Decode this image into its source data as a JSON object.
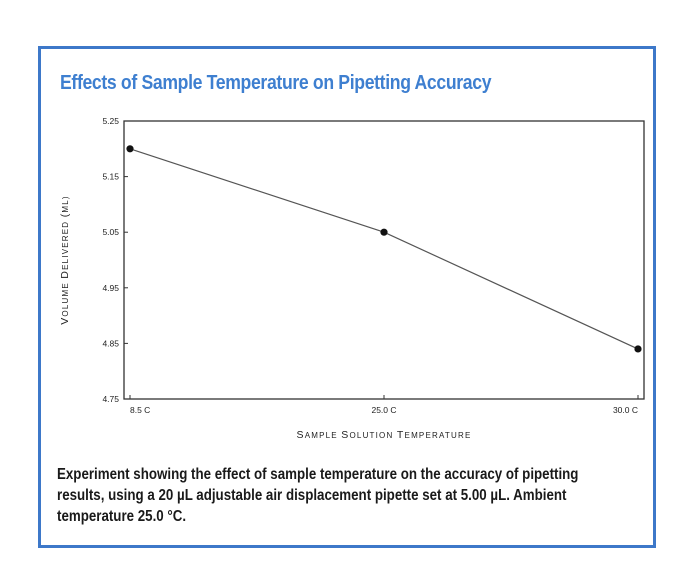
{
  "title": "Effects of Sample Temperature on Pipetting Accuracy",
  "caption": {
    "line1": "Experiment showing the effect of sample temperature on the accuracy of pipetting",
    "line2": "results, using a 20 µL adjustable air displacement pipette set at 5.00 µL. Ambient",
    "line3": "temperature 25.0 °C."
  },
  "colors": {
    "frame": "#3d78c9",
    "title": "#3e7fd0",
    "line": "#555555",
    "marker": "#111111"
  },
  "chart_data": {
    "type": "line",
    "title": "Effects of Sample Temperature on Pipetting Accuracy",
    "xlabel": "Sample Solution Temperature",
    "ylabel": "Volume Delivered (µL)",
    "categories": [
      "8.5 C",
      "25.0 C",
      "30.0 C"
    ],
    "series": [
      {
        "values": [
          5.2,
          5.05,
          4.84
        ]
      }
    ],
    "ylim": [
      4.75,
      5.25
    ],
    "yticks": [
      "5.25",
      "5.15",
      "5.05",
      "4.95",
      "4.85",
      "4.75"
    ],
    "ytick_values": [
      5.25,
      5.15,
      5.05,
      4.95,
      4.85,
      4.75
    ],
    "grid": false,
    "legend": "none"
  }
}
